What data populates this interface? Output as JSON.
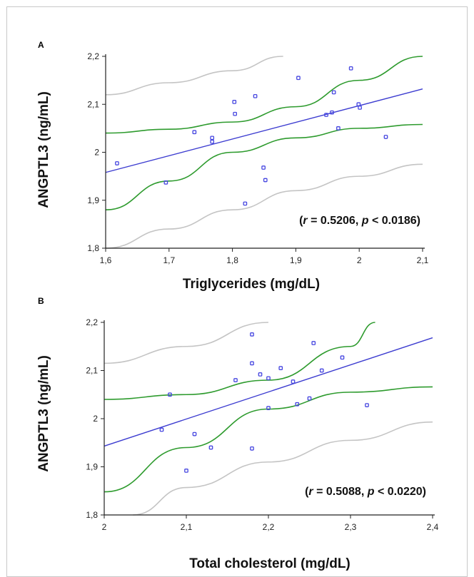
{
  "chart_data": [
    {
      "type": "scatter",
      "panel": "A",
      "xlabel": "Triglycerides (mg/dL)",
      "ylabel": "ANGPTL3 (ng/mL)",
      "xlim": [
        1.6,
        2.1
      ],
      "ylim": [
        1.8,
        2.2
      ],
      "xticks": [
        "1,6",
        "1,7",
        "1,8",
        "1,9",
        "2",
        "2,1"
      ],
      "yticks": [
        "1,8",
        "1,9",
        "2",
        "2,1",
        "2,2"
      ],
      "annotation": {
        "r_label": "r",
        "r_text": " = 0.5206, ",
        "p_label": "p",
        "p_text": " < 0.0186)",
        "open": "("
      },
      "points": [
        {
          "x": 1.618,
          "y": 1.977
        },
        {
          "x": 1.695,
          "y": 1.937
        },
        {
          "x": 1.74,
          "y": 2.042
        },
        {
          "x": 1.768,
          "y": 2.03
        },
        {
          "x": 1.768,
          "y": 2.022
        },
        {
          "x": 1.803,
          "y": 2.105
        },
        {
          "x": 1.804,
          "y": 2.08
        },
        {
          "x": 1.82,
          "y": 1.893
        },
        {
          "x": 1.836,
          "y": 2.117
        },
        {
          "x": 1.849,
          "y": 1.968
        },
        {
          "x": 1.852,
          "y": 1.942
        },
        {
          "x": 1.904,
          "y": 2.155
        },
        {
          "x": 1.948,
          "y": 2.078
        },
        {
          "x": 1.957,
          "y": 2.083
        },
        {
          "x": 1.96,
          "y": 2.125
        },
        {
          "x": 1.967,
          "y": 2.05
        },
        {
          "x": 1.987,
          "y": 2.175
        },
        {
          "x": 1.999,
          "y": 2.1
        },
        {
          "x": 2.001,
          "y": 2.093
        },
        {
          "x": 2.042,
          "y": 2.032
        }
      ],
      "fit": {
        "x": [
          1.6,
          2.1
        ],
        "y": [
          1.958,
          2.132
        ]
      },
      "ci_upper": {
        "x": [
          1.6,
          1.7,
          1.8,
          1.9,
          2.0,
          2.1
        ],
        "y": [
          2.04,
          2.048,
          2.063,
          2.095,
          2.15,
          2.2
        ]
      },
      "ci_lower": {
        "x": [
          1.6,
          1.7,
          1.8,
          1.9,
          2.0,
          2.1
        ],
        "y": [
          1.88,
          1.94,
          2.0,
          2.03,
          2.05,
          2.058
        ]
      },
      "pi_upper": {
        "x": [
          1.6,
          1.7,
          1.8,
          1.88
        ],
        "y": [
          2.12,
          2.145,
          2.17,
          2.2
        ]
      },
      "pi_lower": {
        "x": [
          1.6,
          1.7,
          1.8,
          1.9,
          2.0,
          2.1
        ],
        "y": [
          1.8,
          1.84,
          1.88,
          1.92,
          1.95,
          1.975
        ]
      },
      "colors": {
        "points": "#4646e0",
        "fit": "#3c3cd0",
        "ci": "#2e9b2e",
        "pi": "#c4c4c4"
      }
    },
    {
      "type": "scatter",
      "panel": "B",
      "xlabel": "Total cholesterol (mg/dL)",
      "ylabel": "ANGPTL3 (ng/mL)",
      "xlim": [
        2.0,
        2.4
      ],
      "ylim": [
        1.8,
        2.2
      ],
      "xticks": [
        "2",
        "2,1",
        "2,2",
        "2,3",
        "2,4"
      ],
      "yticks": [
        "1,8",
        "1,9",
        "2",
        "2,1",
        "2,2"
      ],
      "annotation": {
        "r_label": "r",
        "r_text": " = 0.5088, ",
        "p_label": "p",
        "p_text": " < 0.0220)",
        "open": "("
      },
      "points": [
        {
          "x": 2.07,
          "y": 1.977
        },
        {
          "x": 2.08,
          "y": 2.05
        },
        {
          "x": 2.1,
          "y": 1.892
        },
        {
          "x": 2.11,
          "y": 1.968
        },
        {
          "x": 2.13,
          "y": 1.94
        },
        {
          "x": 2.16,
          "y": 2.08
        },
        {
          "x": 2.18,
          "y": 2.175
        },
        {
          "x": 2.18,
          "y": 2.115
        },
        {
          "x": 2.18,
          "y": 1.938
        },
        {
          "x": 2.19,
          "y": 2.092
        },
        {
          "x": 2.2,
          "y": 2.084
        },
        {
          "x": 2.2,
          "y": 2.022
        },
        {
          "x": 2.215,
          "y": 2.105
        },
        {
          "x": 2.23,
          "y": 2.077
        },
        {
          "x": 2.235,
          "y": 2.03
        },
        {
          "x": 2.25,
          "y": 2.042
        },
        {
          "x": 2.255,
          "y": 2.157
        },
        {
          "x": 2.265,
          "y": 2.1
        },
        {
          "x": 2.29,
          "y": 2.127
        },
        {
          "x": 2.32,
          "y": 2.028
        }
      ],
      "fit": {
        "x": [
          2.0,
          2.4
        ],
        "y": [
          1.943,
          2.168
        ]
      },
      "ci_upper": {
        "x": [
          2.0,
          2.1,
          2.2,
          2.3,
          2.33
        ],
        "y": [
          2.04,
          2.05,
          2.08,
          2.15,
          2.2
        ]
      },
      "ci_lower": {
        "x": [
          2.0,
          2.1,
          2.2,
          2.3,
          2.4
        ],
        "y": [
          1.848,
          1.94,
          2.02,
          2.055,
          2.066
        ]
      },
      "pi_upper": {
        "x": [
          2.0,
          2.1,
          2.2
        ],
        "y": [
          2.115,
          2.15,
          2.2
        ]
      },
      "pi_lower": {
        "x": [
          2.035,
          2.1,
          2.2,
          2.3,
          2.4
        ],
        "y": [
          1.8,
          1.857,
          1.91,
          1.955,
          1.993
        ]
      },
      "colors": {
        "points": "#4646e0",
        "fit": "#3c3cd0",
        "ci": "#2e9b2e",
        "pi": "#c4c4c4"
      }
    }
  ]
}
